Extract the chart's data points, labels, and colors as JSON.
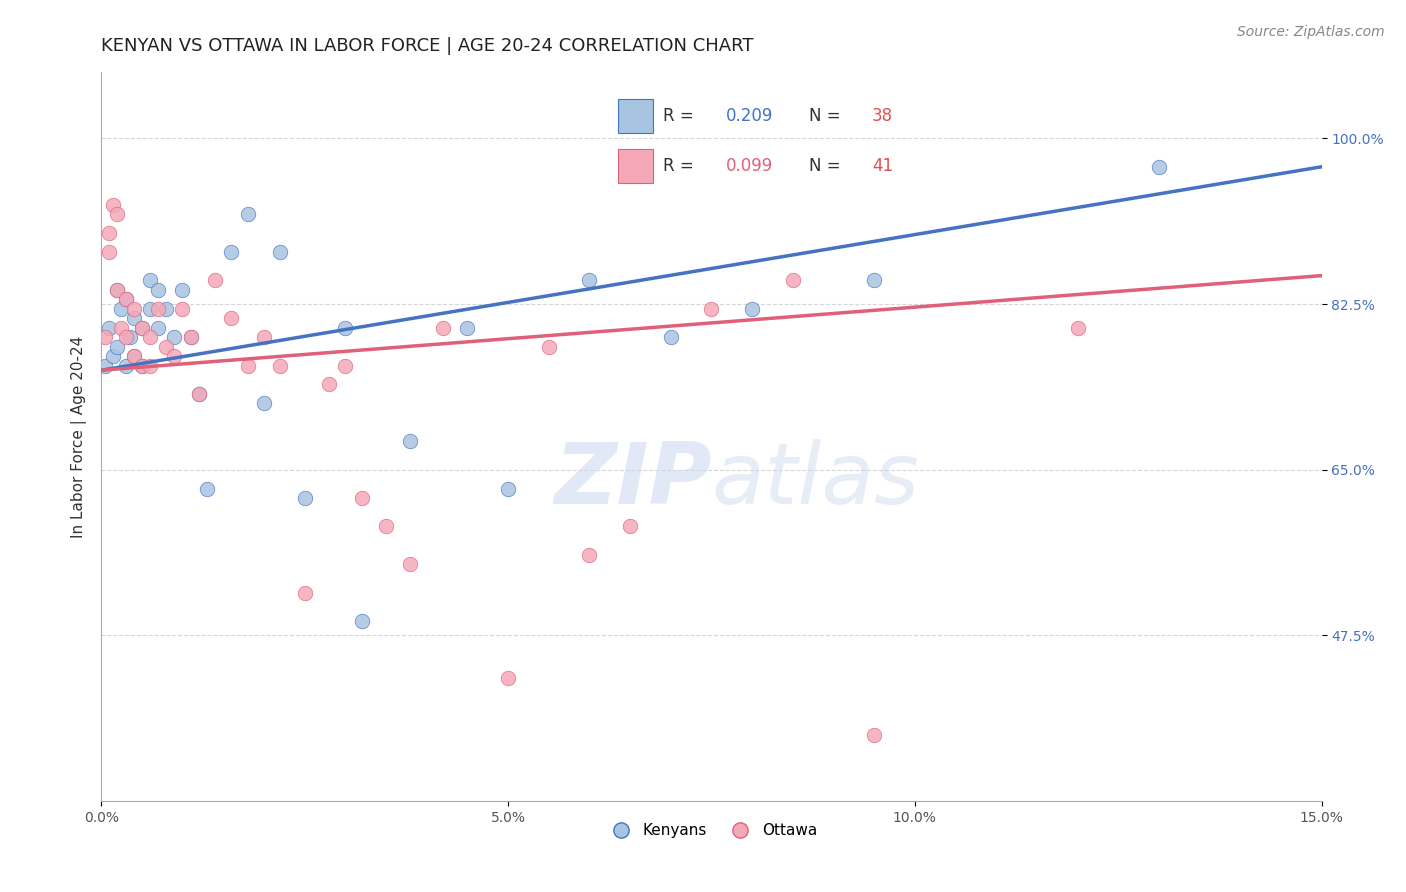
{
  "title": "KENYAN VS OTTAWA IN LABOR FORCE | AGE 20-24 CORRELATION CHART",
  "source_text": "Source: ZipAtlas.com",
  "ylabel": "In Labor Force | Age 20-24",
  "xlim": [
    0.0,
    0.15
  ],
  "ylim": [
    0.3,
    1.07
  ],
  "xticks": [
    0.0,
    0.05,
    0.1,
    0.15
  ],
  "xticklabels": [
    "0.0%",
    "5.0%",
    "10.0%",
    "15.0%"
  ],
  "yticks": [
    0.475,
    0.65,
    0.825,
    1.0
  ],
  "yticklabels": [
    "47.5%",
    "65.0%",
    "82.5%",
    "100.0%"
  ],
  "kenyan_x": [
    0.0005,
    0.001,
    0.0015,
    0.002,
    0.002,
    0.0025,
    0.003,
    0.003,
    0.0035,
    0.004,
    0.004,
    0.005,
    0.005,
    0.006,
    0.006,
    0.007,
    0.007,
    0.008,
    0.009,
    0.01,
    0.011,
    0.012,
    0.013,
    0.016,
    0.018,
    0.02,
    0.022,
    0.025,
    0.03,
    0.032,
    0.038,
    0.045,
    0.05,
    0.06,
    0.07,
    0.08,
    0.095,
    0.13
  ],
  "kenyan_y": [
    0.76,
    0.8,
    0.77,
    0.84,
    0.78,
    0.82,
    0.76,
    0.83,
    0.79,
    0.77,
    0.81,
    0.8,
    0.76,
    0.85,
    0.82,
    0.84,
    0.8,
    0.82,
    0.79,
    0.84,
    0.79,
    0.73,
    0.63,
    0.88,
    0.92,
    0.72,
    0.88,
    0.62,
    0.8,
    0.49,
    0.68,
    0.8,
    0.63,
    0.85,
    0.79,
    0.82,
    0.85,
    0.97
  ],
  "ottawa_x": [
    0.0005,
    0.001,
    0.001,
    0.0015,
    0.002,
    0.002,
    0.0025,
    0.003,
    0.003,
    0.004,
    0.004,
    0.005,
    0.005,
    0.006,
    0.006,
    0.007,
    0.008,
    0.009,
    0.01,
    0.011,
    0.012,
    0.014,
    0.016,
    0.018,
    0.02,
    0.022,
    0.025,
    0.028,
    0.03,
    0.032,
    0.035,
    0.038,
    0.042,
    0.05,
    0.055,
    0.06,
    0.065,
    0.075,
    0.085,
    0.095,
    0.12
  ],
  "ottawa_y": [
    0.79,
    0.88,
    0.9,
    0.93,
    0.92,
    0.84,
    0.8,
    0.83,
    0.79,
    0.77,
    0.82,
    0.8,
    0.76,
    0.76,
    0.79,
    0.82,
    0.78,
    0.77,
    0.82,
    0.79,
    0.73,
    0.85,
    0.81,
    0.76,
    0.79,
    0.76,
    0.52,
    0.74,
    0.76,
    0.62,
    0.59,
    0.55,
    0.8,
    0.43,
    0.78,
    0.56,
    0.59,
    0.82,
    0.85,
    0.37,
    0.8
  ],
  "kenyan_color": "#a8c4e0",
  "ottawa_color": "#f4a8b8",
  "kenyan_line_color": "#4472c4",
  "ottawa_line_color": "#e0607a",
  "kenyan_R": 0.209,
  "kenyan_N": 38,
  "ottawa_R": 0.099,
  "ottawa_N": 41,
  "marker_size": 110,
  "watermark_zip": "ZIP",
  "watermark_atlas": "atlas",
  "watermark_color_zip": "#c5d8ee",
  "watermark_color_atlas": "#c5d8ee",
  "title_fontsize": 13,
  "axis_label_fontsize": 11,
  "tick_fontsize": 10,
  "legend_fontsize": 12,
  "source_fontsize": 10
}
